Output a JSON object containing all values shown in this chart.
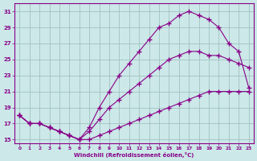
{
  "xlabel": "Windchill (Refroidissement éolien,°C)",
  "xlim": [
    -0.5,
    23.5
  ],
  "ylim": [
    14.5,
    32
  ],
  "yticks": [
    15,
    17,
    19,
    21,
    23,
    25,
    27,
    29,
    31
  ],
  "xticks": [
    0,
    1,
    2,
    3,
    4,
    5,
    6,
    7,
    8,
    9,
    10,
    11,
    12,
    13,
    14,
    15,
    16,
    17,
    18,
    19,
    20,
    21,
    22,
    23
  ],
  "background_color": "#cce8e8",
  "line_color": "#880088",
  "grid_color": "#99bbbb",
  "line1_x": [
    0,
    1,
    2,
    3,
    4,
    5,
    6,
    7,
    8,
    9,
    10,
    11,
    12,
    13,
    14,
    15,
    16,
    17,
    18,
    19,
    20,
    21,
    22,
    23
  ],
  "line1_y": [
    18,
    17,
    17,
    16.5,
    16,
    15.5,
    15,
    15,
    15.5,
    16,
    16.5,
    17,
    17.5,
    18,
    18.5,
    19,
    19.5,
    20,
    20.5,
    21,
    21,
    21,
    21,
    21
  ],
  "line2_x": [
    0,
    1,
    2,
    3,
    4,
    5,
    6,
    7,
    8,
    9,
    10,
    11,
    12,
    13,
    14,
    15,
    16,
    17,
    18,
    19,
    20,
    21,
    22,
    23
  ],
  "line2_y": [
    18,
    17,
    17,
    16.5,
    16,
    15.5,
    15,
    16,
    17.5,
    19,
    20,
    21,
    22,
    23,
    24,
    25,
    25.5,
    26,
    26,
    25.5,
    25.5,
    25,
    24.5,
    24
  ],
  "line3_x": [
    0,
    1,
    2,
    3,
    4,
    5,
    6,
    7,
    8,
    9,
    10,
    11,
    12,
    13,
    14,
    15,
    16,
    17,
    18,
    19,
    20,
    21,
    22,
    23
  ],
  "line3_y": [
    18,
    17,
    17,
    16.5,
    16,
    15.5,
    15,
    16.5,
    19,
    21,
    23,
    24.5,
    26,
    27.5,
    29,
    29.5,
    30.5,
    31,
    30.5,
    30,
    29,
    27,
    26,
    21.5
  ]
}
